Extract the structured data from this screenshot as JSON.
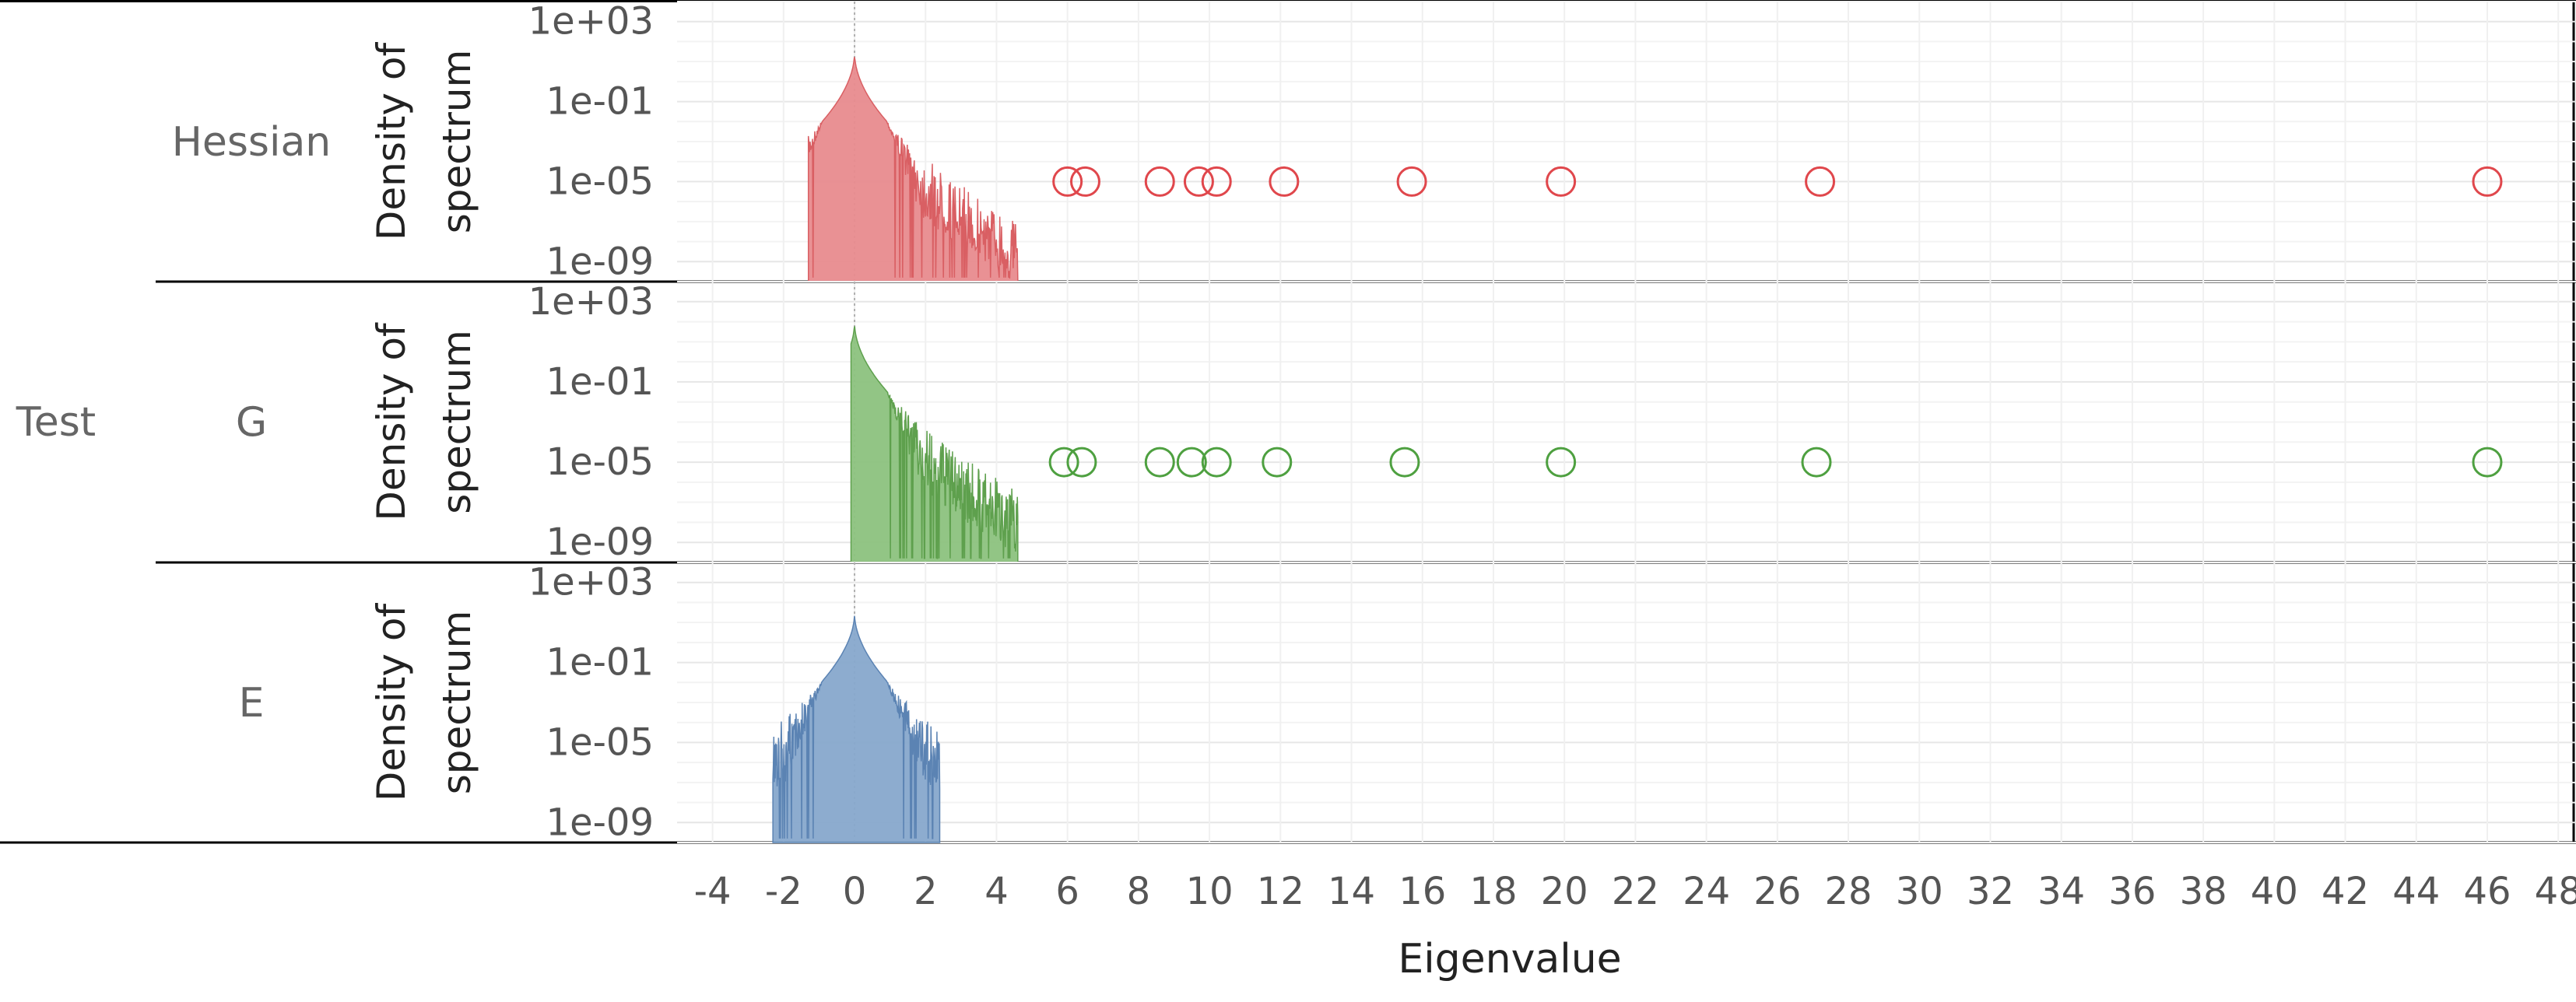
{
  "chart_data": {
    "type": "area",
    "xlabel": "Eigenvalue",
    "ylabel_line1": "Density of",
    "ylabel_line2": "spectrum",
    "row_group_label": "Test",
    "xlim": [
      -5,
      48.5
    ],
    "x_ticks": [
      -4,
      -2,
      0,
      2,
      4,
      6,
      8,
      10,
      12,
      14,
      16,
      18,
      20,
      22,
      24,
      26,
      28,
      30,
      32,
      34,
      36,
      38,
      40,
      42,
      44,
      46,
      48
    ],
    "y_scale": "log10",
    "ylim": [
      1e-10,
      10000.0
    ],
    "y_ticks": [
      {
        "value": 1000,
        "label": "1e+03"
      },
      {
        "value": 0.1,
        "label": "1e-01"
      },
      {
        "value": 1e-05,
        "label": "1e-05"
      },
      {
        "value": 1e-09,
        "label": "1e-09"
      }
    ],
    "zero_reference_line": 0,
    "grid": true,
    "panels": [
      {
        "name": "Hessian",
        "color": "#e88b8e",
        "outline_color": "#d95f63",
        "outlier_color": "#e0474c",
        "density_range": [
          -1.3,
          4.6
        ],
        "density_peak": [
          0,
          30
        ],
        "outliers": [
          {
            "x": 6.0,
            "y": 1e-05
          },
          {
            "x": 6.5,
            "y": 1e-05
          },
          {
            "x": 8.6,
            "y": 1e-05
          },
          {
            "x": 9.7,
            "y": 1e-05
          },
          {
            "x": 10.2,
            "y": 1e-05
          },
          {
            "x": 12.1,
            "y": 1e-05
          },
          {
            "x": 15.7,
            "y": 1e-05
          },
          {
            "x": 19.9,
            "y": 1e-05
          },
          {
            "x": 27.2,
            "y": 1e-05
          },
          {
            "x": 46.0,
            "y": 1e-05
          }
        ]
      },
      {
        "name": "G",
        "color": "#8cc27e",
        "outline_color": "#5ea04d",
        "outlier_color": "#4ea040",
        "density_range": [
          -0.1,
          4.6
        ],
        "density_peak": [
          0,
          100
        ],
        "outliers": [
          {
            "x": 5.9,
            "y": 1e-05
          },
          {
            "x": 6.4,
            "y": 1e-05
          },
          {
            "x": 8.6,
            "y": 1e-05
          },
          {
            "x": 9.5,
            "y": 1e-05
          },
          {
            "x": 10.2,
            "y": 1e-05
          },
          {
            "x": 11.9,
            "y": 1e-05
          },
          {
            "x": 15.5,
            "y": 1e-05
          },
          {
            "x": 19.9,
            "y": 1e-05
          },
          {
            "x": 27.1,
            "y": 1e-05
          },
          {
            "x": 46.0,
            "y": 1e-05
          }
        ]
      },
      {
        "name": "E",
        "color": "#87a8cc",
        "outline_color": "#5b83b3",
        "outlier_color": "#5b83b3",
        "density_range": [
          -2.3,
          2.4
        ],
        "density_peak": [
          0,
          30
        ],
        "outliers": []
      }
    ]
  }
}
